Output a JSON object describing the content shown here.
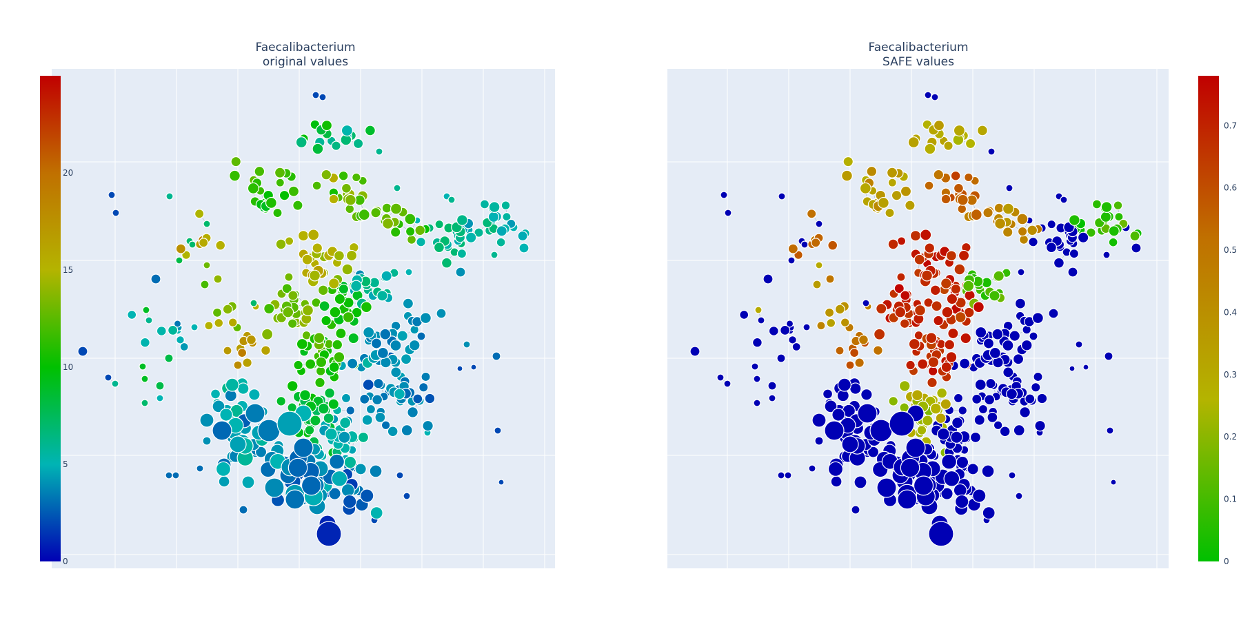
{
  "chart_data": [
    {
      "type": "scatter",
      "subtype": "network",
      "title_line1": "Faecalibacterium",
      "title_line2": "original values",
      "colorbar": {
        "side": "left",
        "range": [
          0,
          25
        ],
        "ticks": [
          0,
          5,
          10,
          15,
          20
        ],
        "tick_labels": [
          "0",
          "5",
          "10",
          "15",
          "20"
        ],
        "colors": [
          "#0000b4",
          "#00b4b4",
          "#00c000",
          "#b4b400",
          "#c07000",
          "#c00000"
        ]
      },
      "grid": true,
      "show_axis_tick_labels": false
    },
    {
      "type": "scatter",
      "subtype": "network",
      "title_line1": "Faecalibacterium",
      "title_line2": "SAFE values",
      "colorbar": {
        "side": "right",
        "range": [
          0,
          0.78
        ],
        "ticks": [
          0,
          0.1,
          0.2,
          0.3,
          0.4,
          0.5,
          0.6,
          0.7
        ],
        "tick_labels": [
          "0",
          "0.1",
          "0.2",
          "0.3",
          "0.4",
          "0.5",
          "0.6",
          "0.7"
        ],
        "colors": [
          "#00c000",
          "#b4b400",
          "#c07000",
          "#c00000"
        ],
        "null_color": "#0000b4"
      },
      "grid": true,
      "show_axis_tick_labels": false
    }
  ],
  "colors": {
    "plot_bg": "#e5ecf6",
    "grid": "#ffffff",
    "text": "#2a3f5f",
    "node_outline": "#ffffff",
    "edge": "#9aa3b2"
  }
}
